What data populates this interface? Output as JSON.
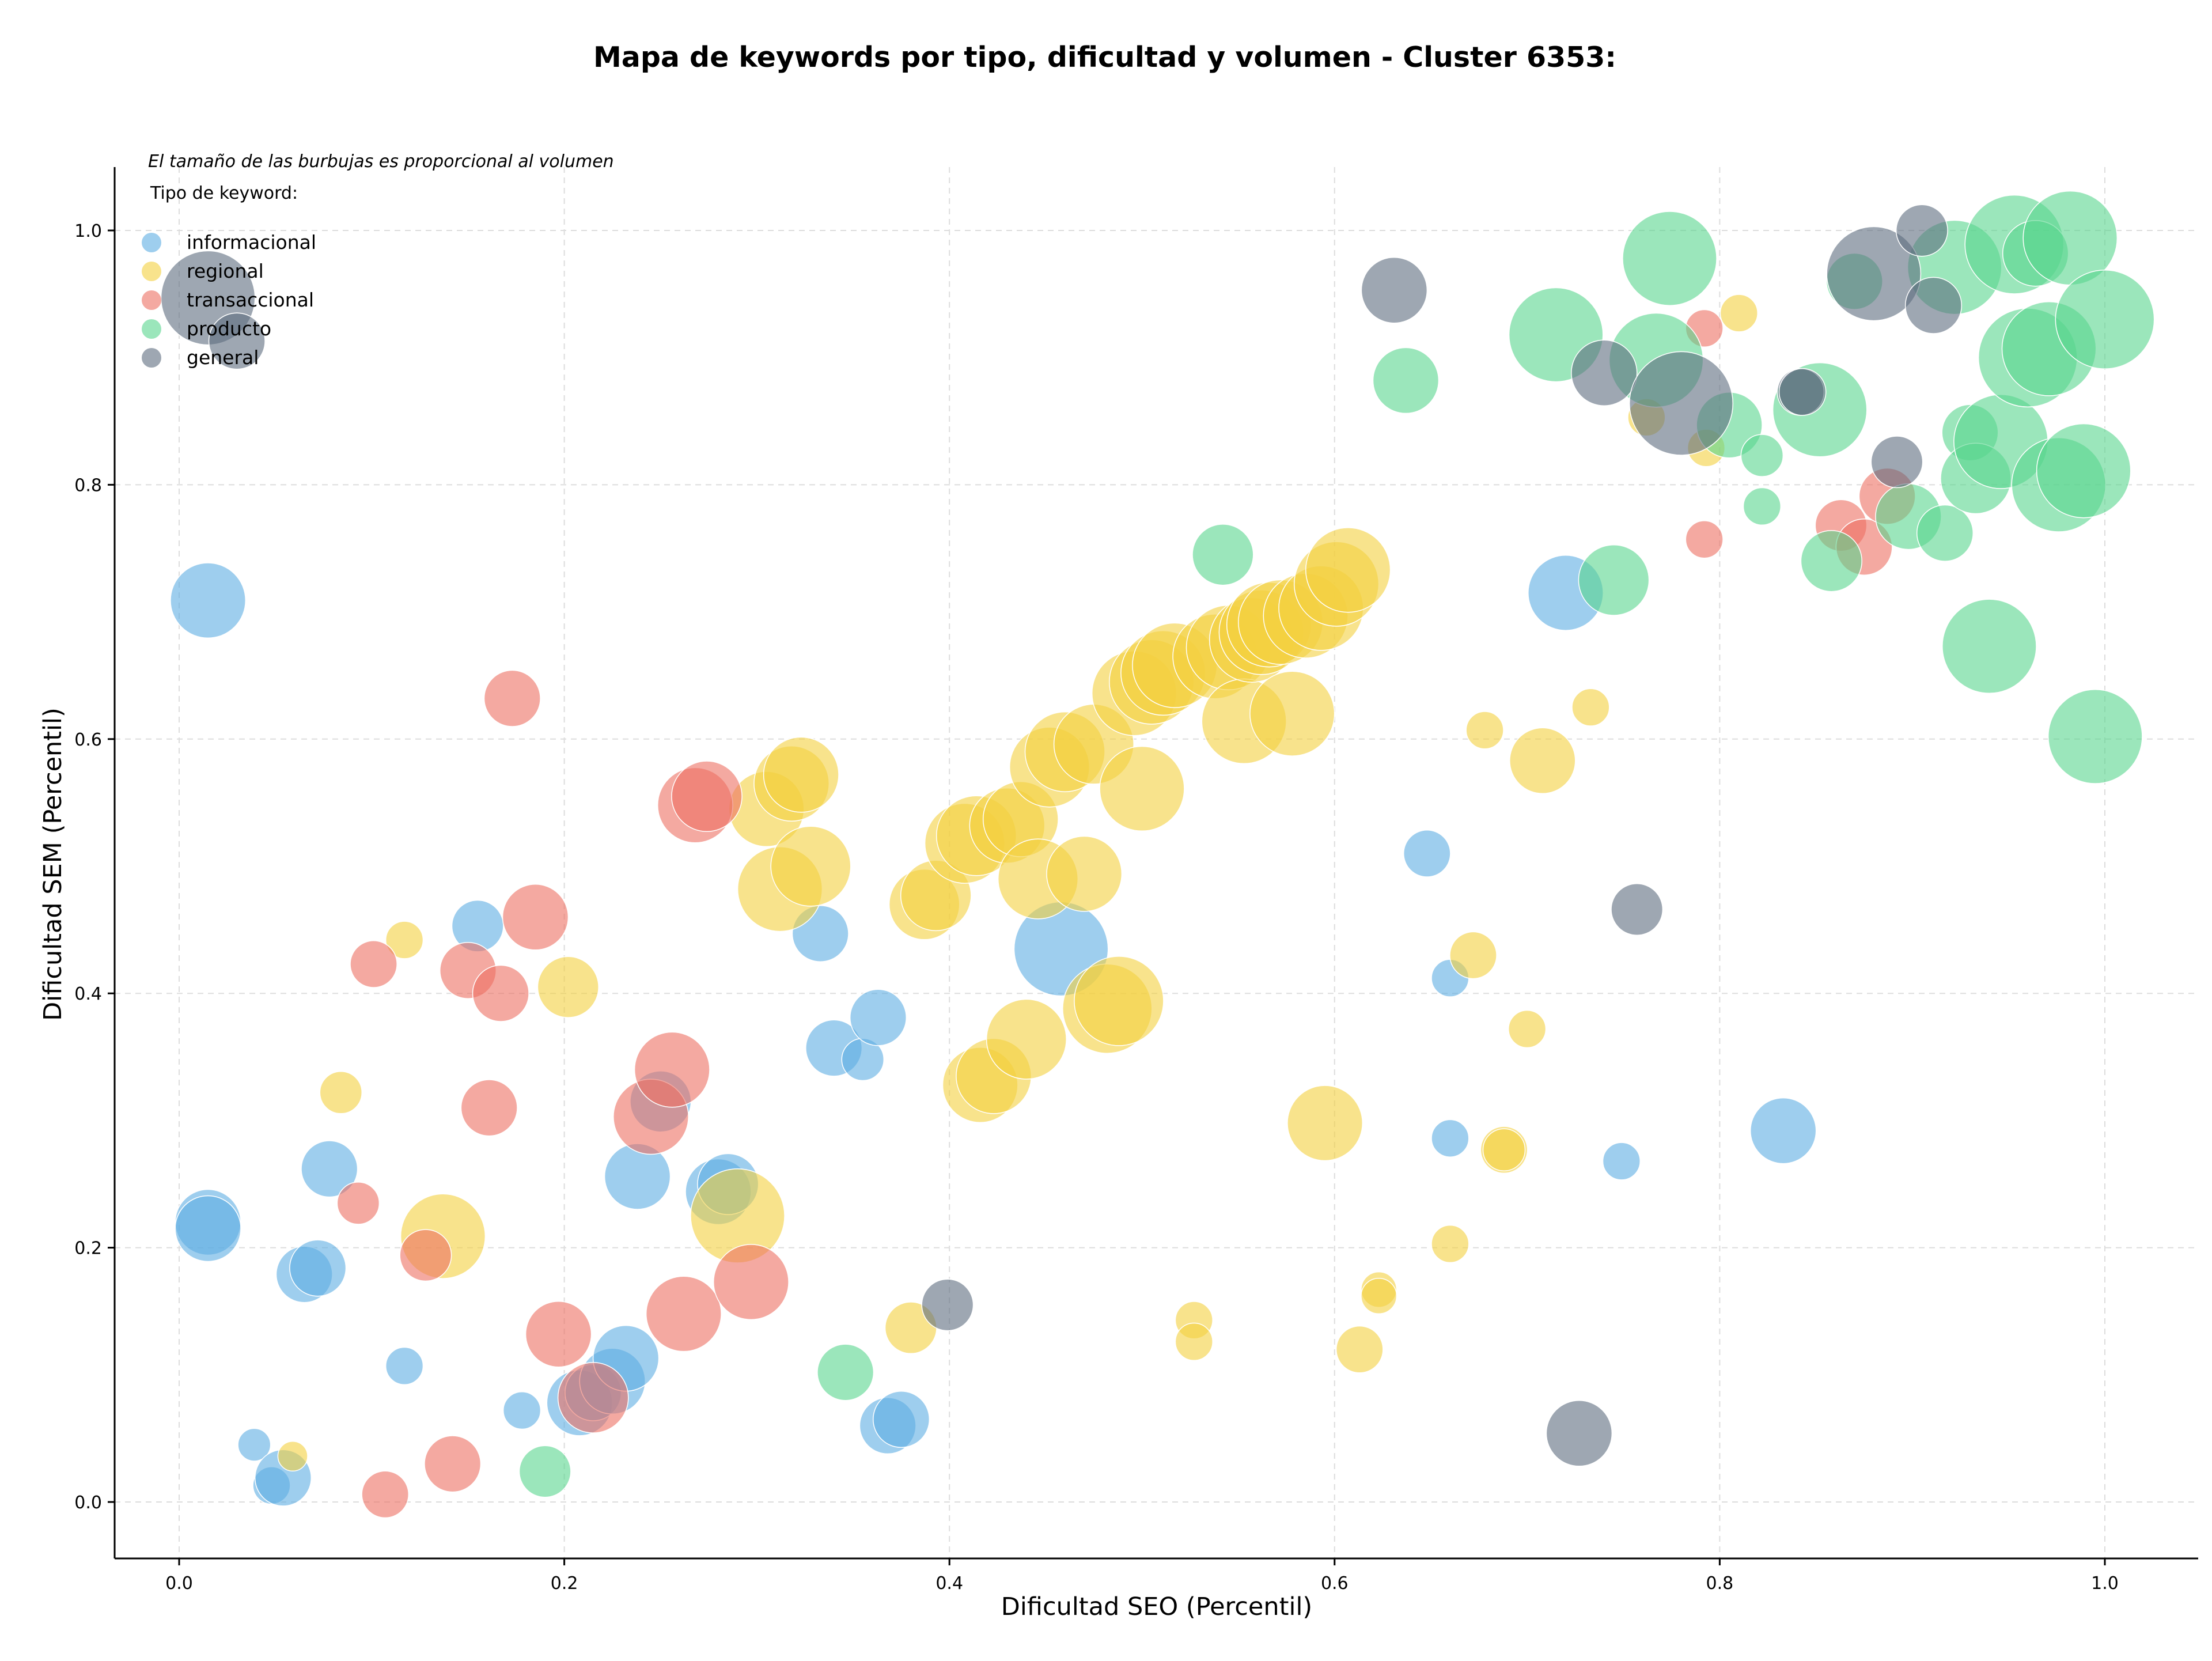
{
  "chart_data": {
    "type": "scatter",
    "title": "Mapa de keywords por tipo, dificultad y volumen - Cluster 6353:",
    "xlabel": "Dificultad SEO (Percentil)",
    "ylabel": "Dificultad SEM (Percentil)",
    "xlim": [
      -0.035,
      1.05
    ],
    "ylim": [
      -0.043,
      1.05
    ],
    "xticks": [
      "0.0",
      "0.2",
      "0.4",
      "0.6",
      "0.8",
      "1.0"
    ],
    "yticks": [
      "0.0",
      "0.2",
      "0.4",
      "0.6",
      "0.8",
      "1.0"
    ],
    "grid": true,
    "note": "El tamaño de las burbujas es proporcional al volumen",
    "legend": {
      "title": "Tipo de keyword:",
      "placement": "top-left",
      "entries": [
        "informacional",
        "regional",
        "transaccional",
        "producto",
        "general"
      ]
    },
    "bubble_scale": "relative volume 1-10",
    "series": [
      {
        "name": "informacional",
        "color": "#5dade2",
        "points": [
          [
            0.015,
            0.709,
            6
          ],
          [
            0.015,
            0.22,
            5
          ],
          [
            0.015,
            0.215,
            5
          ],
          [
            0.078,
            0.262,
            4
          ],
          [
            0.065,
            0.179,
            4
          ],
          [
            0.072,
            0.184,
            4
          ],
          [
            0.155,
            0.453,
            3.5
          ],
          [
            0.117,
            0.107,
            2
          ],
          [
            0.039,
            0.045,
            1.5
          ],
          [
            0.048,
            0.013,
            2
          ],
          [
            0.054,
            0.019,
            4
          ],
          [
            0.178,
            0.072,
            2
          ],
          [
            0.208,
            0.078,
            5
          ],
          [
            0.215,
            0.086,
            4
          ],
          [
            0.225,
            0.095,
            5
          ],
          [
            0.232,
            0.113,
            5
          ],
          [
            0.238,
            0.256,
            5
          ],
          [
            0.25,
            0.315,
            4.5
          ],
          [
            0.28,
            0.244,
            5
          ],
          [
            0.285,
            0.25,
            4.5
          ],
          [
            0.333,
            0.447,
            4
          ],
          [
            0.34,
            0.357,
            4
          ],
          [
            0.355,
            0.348,
            2.5
          ],
          [
            0.363,
            0.381,
            4
          ],
          [
            0.368,
            0.06,
            4
          ],
          [
            0.375,
            0.065,
            4
          ],
          [
            0.458,
            0.435,
            8
          ],
          [
            0.648,
            0.51,
            3
          ],
          [
            0.66,
            0.412,
            2
          ],
          [
            0.66,
            0.286,
            2
          ],
          [
            0.72,
            0.715,
            6
          ],
          [
            0.749,
            0.268,
            2
          ],
          [
            0.833,
            0.292,
            5
          ]
        ]
      },
      {
        "name": "regional",
        "color": "#f4d03f",
        "points": [
          [
            0.059,
            0.036,
            1.2
          ],
          [
            0.084,
            0.322,
            2.5
          ],
          [
            0.117,
            0.442,
            2
          ],
          [
            0.137,
            0.209,
            7
          ],
          [
            0.202,
            0.405,
            4.5
          ],
          [
            0.29,
            0.225,
            8
          ],
          [
            0.305,
            0.545,
            6
          ],
          [
            0.312,
            0.482,
            7
          ],
          [
            0.318,
            0.565,
            6
          ],
          [
            0.323,
            0.572,
            6
          ],
          [
            0.328,
            0.5,
            6.5
          ],
          [
            0.38,
            0.137,
            3.5
          ],
          [
            0.387,
            0.47,
            5.5
          ],
          [
            0.393,
            0.477,
            5.5
          ],
          [
            0.408,
            0.518,
            6.5
          ],
          [
            0.414,
            0.524,
            6.5
          ],
          [
            0.416,
            0.328,
            6
          ],
          [
            0.423,
            0.335,
            6
          ],
          [
            0.43,
            0.532,
            6
          ],
          [
            0.437,
            0.537,
            6
          ],
          [
            0.44,
            0.364,
            6.5
          ],
          [
            0.446,
            0.49,
            6.5
          ],
          [
            0.452,
            0.578,
            6.5
          ],
          [
            0.46,
            0.59,
            6.5
          ],
          [
            0.47,
            0.494,
            6
          ],
          [
            0.475,
            0.596,
            6.5
          ],
          [
            0.482,
            0.388,
            7.5
          ],
          [
            0.488,
            0.394,
            7.5
          ],
          [
            0.5,
            0.561,
            7
          ],
          [
            0.496,
            0.636,
            7
          ],
          [
            0.505,
            0.645,
            7
          ],
          [
            0.511,
            0.652,
            7
          ],
          [
            0.517,
            0.658,
            7
          ],
          [
            0.527,
            0.143,
            2
          ],
          [
            0.527,
            0.126,
            2
          ],
          [
            0.538,
            0.665,
            7
          ],
          [
            0.545,
            0.672,
            7
          ],
          [
            0.553,
            0.614,
            7
          ],
          [
            0.557,
            0.678,
            7
          ],
          [
            0.562,
            0.684,
            7
          ],
          [
            0.566,
            0.69,
            7
          ],
          [
            0.572,
            0.692,
            7
          ],
          [
            0.578,
            0.62,
            7
          ],
          [
            0.585,
            0.697,
            7
          ],
          [
            0.593,
            0.703,
            7
          ],
          [
            0.595,
            0.298,
            6
          ],
          [
            0.601,
            0.722,
            7
          ],
          [
            0.607,
            0.733,
            7
          ],
          [
            0.613,
            0.12,
            3
          ],
          [
            0.623,
            0.167,
            1.8
          ],
          [
            0.623,
            0.162,
            1.8
          ],
          [
            0.66,
            0.203,
            2
          ],
          [
            0.672,
            0.43,
            3
          ],
          [
            0.678,
            0.607,
            2
          ],
          [
            0.688,
            0.277,
            3
          ],
          [
            0.688,
            0.277,
            2.5
          ],
          [
            0.7,
            0.372,
            2
          ],
          [
            0.708,
            0.583,
            5
          ],
          [
            0.733,
            0.625,
            2
          ],
          [
            0.762,
            0.853,
            2
          ],
          [
            0.793,
            0.829,
            2
          ],
          [
            0.81,
            0.935,
            2
          ]
        ]
      },
      {
        "name": "transaccional",
        "color": "#ec7063",
        "points": [
          [
            0.093,
            0.235,
            2.5
          ],
          [
            0.101,
            0.423,
            3
          ],
          [
            0.107,
            0.006,
            3
          ],
          [
            0.128,
            0.194,
            3.5
          ],
          [
            0.142,
            0.03,
            4
          ],
          [
            0.15,
            0.418,
            4
          ],
          [
            0.161,
            0.31,
            4
          ],
          [
            0.167,
            0.4,
            4
          ],
          [
            0.173,
            0.632,
            4
          ],
          [
            0.185,
            0.46,
            5
          ],
          [
            0.197,
            0.132,
            5
          ],
          [
            0.215,
            0.082,
            5.5
          ],
          [
            0.245,
            0.303,
            6
          ],
          [
            0.256,
            0.34,
            6
          ],
          [
            0.262,
            0.148,
            6
          ],
          [
            0.268,
            0.548,
            6
          ],
          [
            0.274,
            0.555,
            5.5
          ],
          [
            0.297,
            0.173,
            6
          ],
          [
            0.792,
            0.923,
            2
          ],
          [
            0.792,
            0.757,
            2
          ],
          [
            0.863,
            0.768,
            3.5
          ],
          [
            0.875,
            0.751,
            4
          ],
          [
            0.887,
            0.791,
            4
          ]
        ]
      },
      {
        "name": "producto",
        "color": "#58d68d",
        "points": [
          [
            0.19,
            0.024,
            3.5
          ],
          [
            0.346,
            0.102,
            4
          ],
          [
            0.542,
            0.745,
            4.5
          ],
          [
            0.637,
            0.882,
            5
          ],
          [
            0.715,
            0.918,
            8
          ],
          [
            0.745,
            0.725,
            5.5
          ],
          [
            0.767,
            0.898,
            8
          ],
          [
            0.774,
            0.978,
            8
          ],
          [
            0.805,
            0.847,
            5
          ],
          [
            0.822,
            0.823,
            2.5
          ],
          [
            0.822,
            0.783,
            2
          ],
          [
            0.852,
            0.859,
            8
          ],
          [
            0.858,
            0.74,
            4.5
          ],
          [
            0.87,
            0.96,
            4
          ],
          [
            0.898,
            0.775,
            5
          ],
          [
            0.917,
            0.762,
            4
          ],
          [
            0.922,
            0.971,
            8
          ],
          [
            0.93,
            0.841,
            4
          ],
          [
            0.933,
            0.805,
            5.5
          ],
          [
            0.94,
            0.673,
            8
          ],
          [
            0.946,
            0.834,
            8
          ],
          [
            0.953,
            0.989,
            8.5
          ],
          [
            0.96,
            0.9,
            8.5
          ],
          [
            0.964,
            0.982,
            5
          ],
          [
            0.971,
            0.907,
            8
          ],
          [
            0.976,
            0.8,
            8
          ],
          [
            0.982,
            0.994,
            8
          ],
          [
            0.989,
            0.811,
            8
          ],
          [
            0.995,
            0.602,
            8
          ],
          [
            1.0,
            0.93,
            8.5
          ]
        ]
      },
      {
        "name": "general",
        "color": "#5d6d7e",
        "points": [
          [
            0.015,
            0.947,
            8
          ],
          [
            0.03,
            0.913,
            4
          ],
          [
            0.399,
            0.155,
            3.5
          ],
          [
            0.631,
            0.953,
            5
          ],
          [
            0.727,
            0.054,
            5
          ],
          [
            0.74,
            0.888,
            5
          ],
          [
            0.757,
            0.466,
            3.5
          ],
          [
            0.78,
            0.864,
            9
          ],
          [
            0.842,
            0.873,
            3
          ],
          [
            0.843,
            0.873,
            3
          ],
          [
            0.88,
            0.966,
            8
          ],
          [
            0.892,
            0.818,
            3.5
          ],
          [
            0.905,
            1.0,
            3.5
          ],
          [
            0.911,
            0.941,
            4
          ]
        ]
      }
    ]
  }
}
